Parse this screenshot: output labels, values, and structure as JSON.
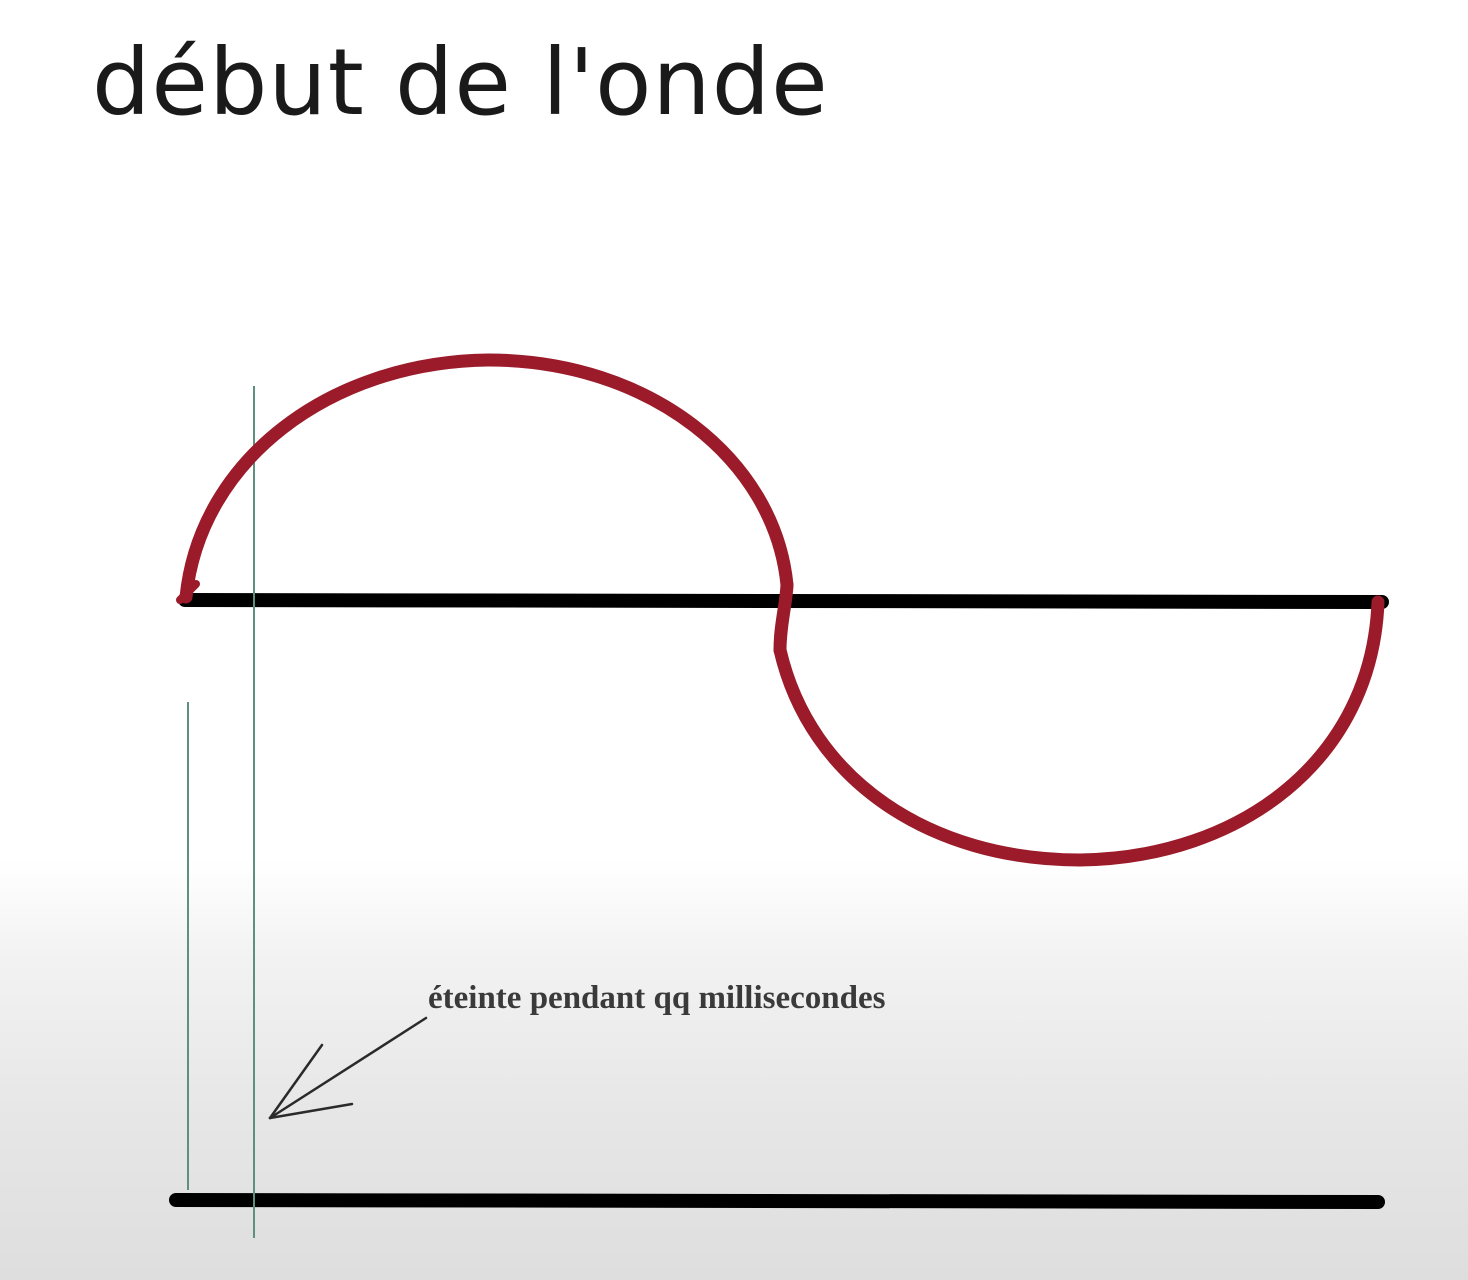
{
  "title": "début de l'onde",
  "annotation": {
    "text": "éteinte pendant qq millisecondes"
  },
  "colors": {
    "wave": "#9b1b2a",
    "axis": "#000000",
    "guide_line": "#5f8f7e",
    "text": "#1a1a1a",
    "annotation_text": "#3a3a3a",
    "arrow": "#2a2a2a"
  }
}
